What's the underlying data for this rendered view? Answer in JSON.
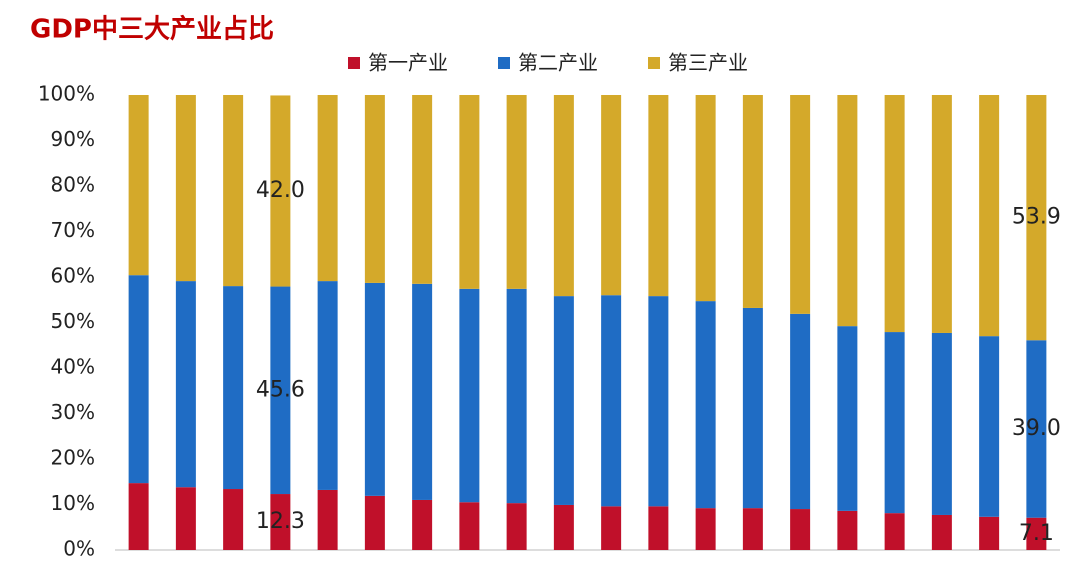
{
  "chart_data": {
    "type": "stacked-bar",
    "title": "GDP中三大产业占比",
    "categories": [
      null,
      null,
      null,
      null,
      null,
      null,
      null,
      null,
      null,
      null,
      null,
      null,
      null,
      null,
      null,
      null,
      null,
      null,
      null,
      null
    ],
    "series": [
      {
        "name": "第一产业",
        "color": "#c0102a",
        "values": [
          14.7,
          13.8,
          13.4,
          12.3,
          13.2,
          11.9,
          11.0,
          10.5,
          10.3,
          9.9,
          9.6,
          9.6,
          9.2,
          9.2,
          9.0,
          8.6,
          8.1,
          7.7,
          7.3,
          7.1
        ],
        "value_labels": [
          null,
          null,
          null,
          "12.3",
          null,
          null,
          null,
          null,
          null,
          null,
          null,
          null,
          null,
          null,
          null,
          null,
          null,
          null,
          null,
          "7.1"
        ]
      },
      {
        "name": "第二产业",
        "color": "#1f6cc4",
        "values": [
          45.7,
          45.3,
          44.6,
          45.6,
          45.9,
          46.8,
          47.5,
          46.9,
          47.1,
          45.9,
          46.4,
          46.2,
          45.5,
          44.0,
          42.9,
          40.6,
          39.8,
          40.0,
          39.7,
          39.0
        ],
        "value_labels": [
          null,
          null,
          null,
          "45.6",
          null,
          null,
          null,
          null,
          null,
          null,
          null,
          null,
          null,
          null,
          null,
          null,
          null,
          null,
          null,
          "39.0"
        ]
      },
      {
        "name": "第三产业",
        "color": "#d4a92a",
        "values": [
          39.6,
          40.9,
          42.0,
          42.0,
          40.9,
          41.3,
          41.5,
          42.6,
          42.6,
          44.2,
          44.0,
          44.2,
          45.3,
          46.8,
          48.1,
          50.8,
          52.1,
          52.3,
          53.0,
          53.9
        ],
        "value_labels": [
          null,
          null,
          null,
          "42.0",
          null,
          null,
          null,
          null,
          null,
          null,
          null,
          null,
          null,
          null,
          null,
          null,
          null,
          null,
          null,
          "53.9"
        ]
      }
    ],
    "ylim": [
      0,
      100
    ],
    "yticks": [
      {
        "value": 0,
        "label": "0%"
      },
      {
        "value": 10,
        "label": "10%"
      },
      {
        "value": 20,
        "label": "20%"
      },
      {
        "value": 30,
        "label": "30%"
      },
      {
        "value": 40,
        "label": "40%"
      },
      {
        "value": 50,
        "label": "50%"
      },
      {
        "value": 60,
        "label": "60%"
      },
      {
        "value": 70,
        "label": "70%"
      },
      {
        "value": 80,
        "label": "80%"
      },
      {
        "value": 90,
        "label": "90%"
      },
      {
        "value": 100,
        "label": "100%"
      }
    ],
    "grid": false,
    "legend": "top"
  }
}
